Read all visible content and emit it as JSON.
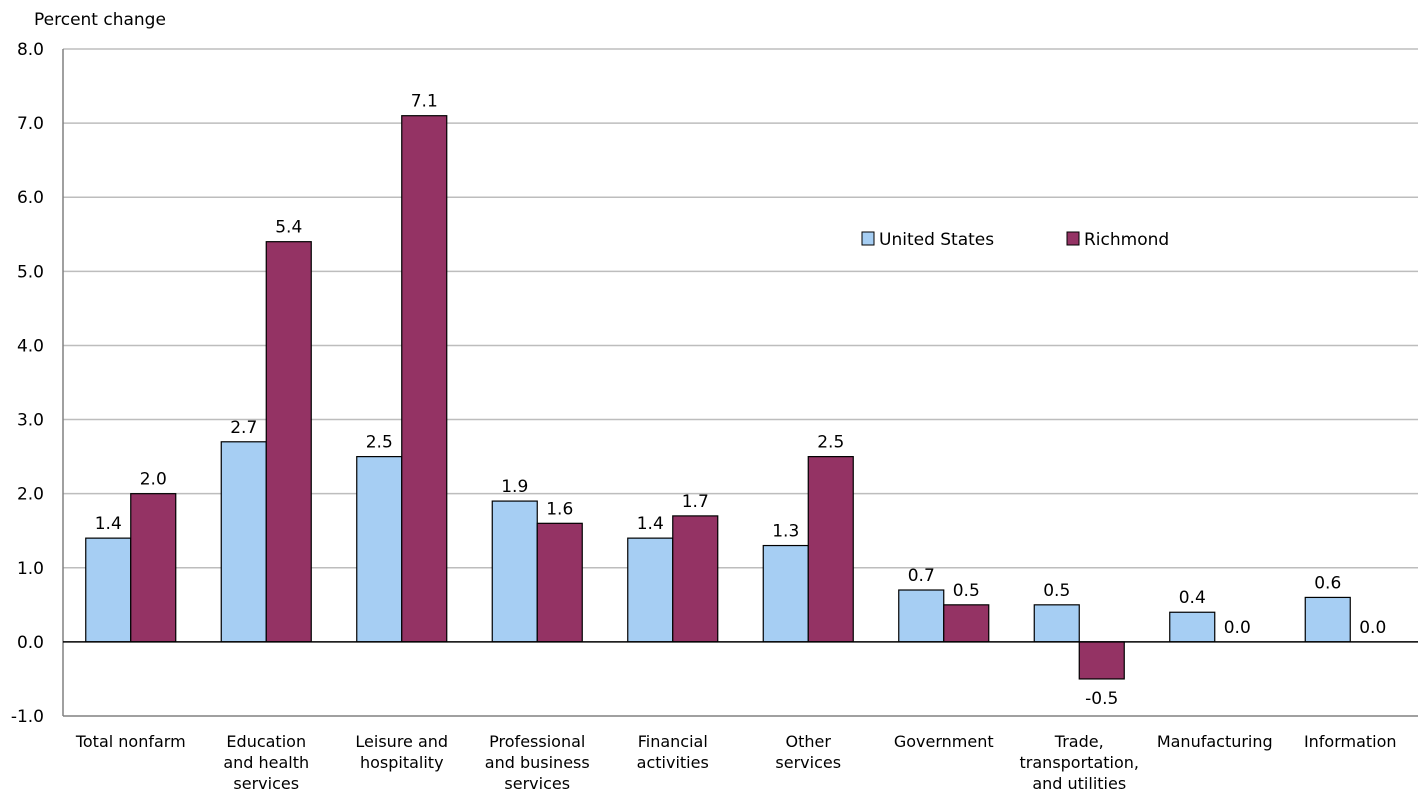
{
  "chart_data": {
    "type": "bar",
    "ylabel": "Percent change",
    "ylim": [
      -1.0,
      8.0
    ],
    "yticks": [
      "-1.0",
      "0.0",
      "1.0",
      "2.0",
      "3.0",
      "4.0",
      "5.0",
      "6.0",
      "7.0",
      "8.0"
    ],
    "grid": true,
    "legend_position": "top-right",
    "categories": [
      [
        "Total nonfarm"
      ],
      [
        "Education",
        "and health",
        "services"
      ],
      [
        "Leisure and",
        "hospitality"
      ],
      [
        "Professional",
        "and business",
        "services"
      ],
      [
        "Financial",
        "activities"
      ],
      [
        "Other",
        "services"
      ],
      [
        "Government"
      ],
      [
        "Trade,",
        "transportation,",
        "and utilities"
      ],
      [
        "Manufacturing"
      ],
      [
        "Information"
      ]
    ],
    "series": [
      {
        "name": "United States",
        "color": "#a6cef3",
        "values": [
          1.4,
          2.7,
          2.5,
          1.9,
          1.4,
          1.3,
          0.7,
          0.5,
          0.4,
          0.6
        ],
        "labels": [
          "1.4",
          "2.7",
          "2.5",
          "1.9",
          "1.4",
          "1.3",
          "0.7",
          "0.5",
          "0.4",
          "0.6"
        ]
      },
      {
        "name": "Richmond",
        "color": "#943364",
        "values": [
          2.0,
          5.4,
          7.1,
          1.6,
          1.7,
          2.5,
          0.5,
          -0.5,
          0.0,
          0.0
        ],
        "labels": [
          "2.0",
          "5.4",
          "7.1",
          "1.6",
          "1.7",
          "2.5",
          "0.5",
          "-0.5",
          "0.0",
          "0.0"
        ]
      }
    ]
  }
}
